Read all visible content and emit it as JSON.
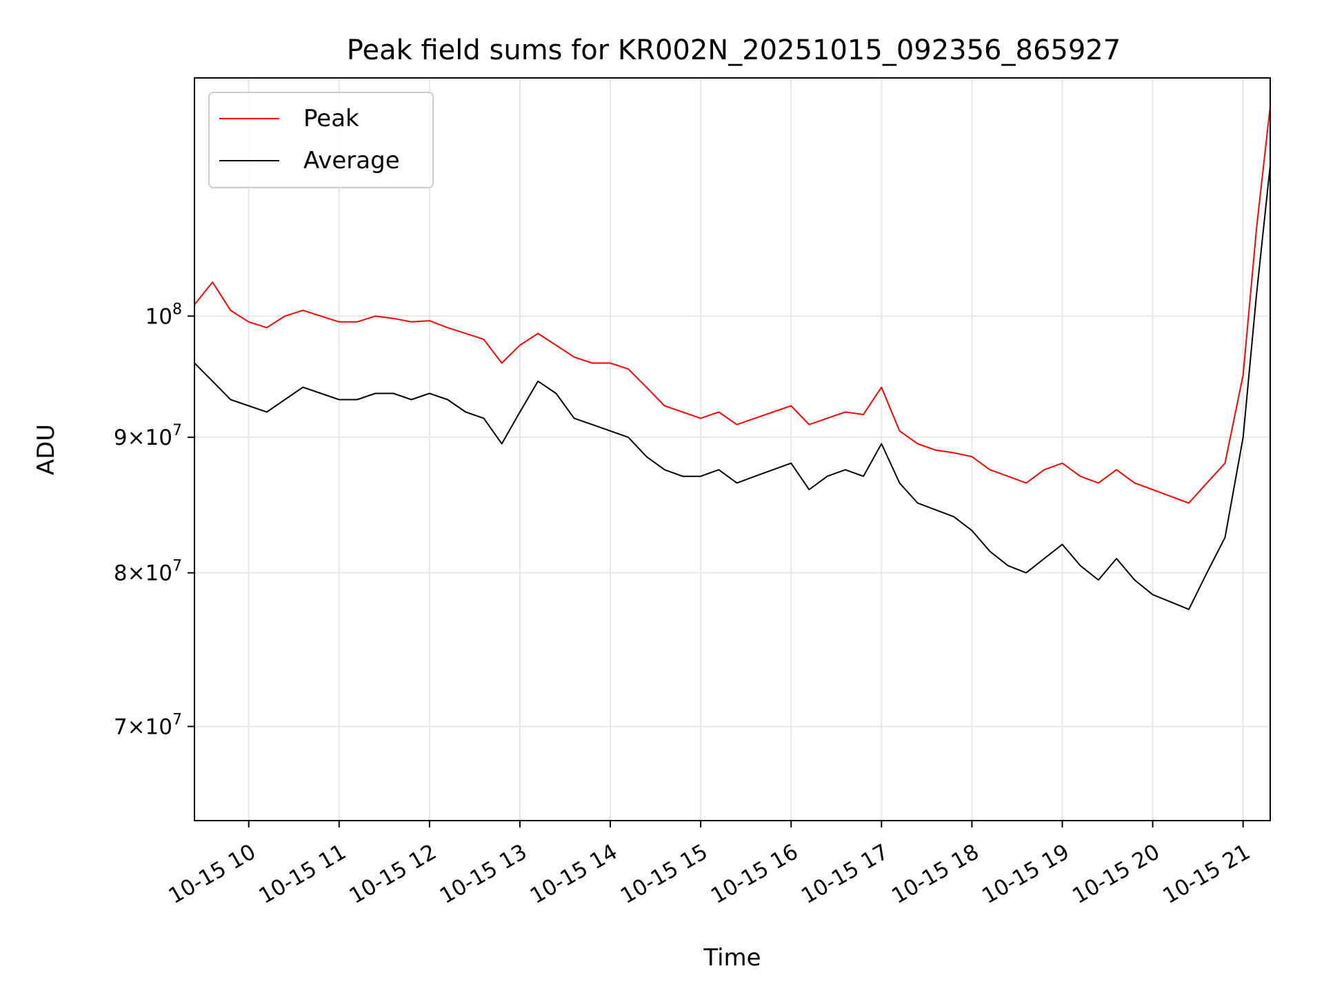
{
  "chart_data": {
    "type": "line",
    "title": "Peak field sums for KR002N_20251015_092356_865927",
    "xlabel": "Time",
    "ylabel": "ADU",
    "yscale": "log",
    "ylim": [
      64500000,
      123000000
    ],
    "xlim": [
      9.4,
      21.3
    ],
    "grid": true,
    "legend_location": "top-left",
    "x_ticks": [
      {
        "value": 10,
        "label": "10-15 10"
      },
      {
        "value": 11,
        "label": "10-15 11"
      },
      {
        "value": 12,
        "label": "10-15 12"
      },
      {
        "value": 13,
        "label": "10-15 13"
      },
      {
        "value": 14,
        "label": "10-15 14"
      },
      {
        "value": 15,
        "label": "10-15 15"
      },
      {
        "value": 16,
        "label": "10-15 16"
      },
      {
        "value": 17,
        "label": "10-15 17"
      },
      {
        "value": 18,
        "label": "10-15 18"
      },
      {
        "value": 19,
        "label": "10-15 19"
      },
      {
        "value": 20,
        "label": "10-15 20"
      },
      {
        "value": 21,
        "label": "10-15 21"
      }
    ],
    "y_ticks": [
      {
        "value": 70000000,
        "base": "7",
        "exp": "7"
      },
      {
        "value": 80000000,
        "base": "8",
        "exp": "7"
      },
      {
        "value": 90000000,
        "base": "9",
        "exp": "7"
      },
      {
        "value": 100000000,
        "base": "",
        "exp": "8"
      }
    ],
    "series": [
      {
        "name": "Peak",
        "color": "#ff0000",
        "x": [
          9.4,
          9.6,
          9.8,
          10.0,
          10.2,
          10.4,
          10.6,
          10.8,
          11.0,
          11.2,
          11.4,
          11.6,
          11.8,
          12.0,
          12.2,
          12.4,
          12.6,
          12.8,
          13.0,
          13.2,
          13.4,
          13.6,
          13.8,
          14.0,
          14.2,
          14.4,
          14.6,
          14.8,
          15.0,
          15.2,
          15.4,
          15.6,
          15.8,
          16.0,
          16.2,
          16.4,
          16.6,
          16.8,
          17.0,
          17.2,
          17.4,
          17.6,
          17.8,
          18.0,
          18.2,
          18.4,
          18.6,
          18.8,
          19.0,
          19.2,
          19.4,
          19.6,
          19.8,
          20.0,
          20.2,
          20.4,
          20.6,
          20.8,
          21.0,
          21.15,
          21.3
        ],
        "values": [
          101000000,
          103000000,
          100500000,
          99500000,
          99000000,
          100000000,
          100500000,
          100000000,
          99500000,
          99500000,
          100000000,
          99800000,
          99500000,
          99600000,
          99000000,
          98500000,
          98000000,
          96000000,
          97500000,
          98500000,
          97500000,
          96500000,
          96000000,
          96000000,
          95500000,
          94000000,
          92500000,
          92000000,
          91500000,
          92000000,
          91000000,
          91500000,
          92000000,
          92500000,
          91000000,
          91500000,
          92000000,
          91800000,
          94000000,
          90500000,
          89500000,
          89000000,
          88800000,
          88500000,
          87500000,
          87000000,
          86500000,
          87500000,
          88000000,
          87000000,
          86500000,
          87500000,
          86500000,
          86000000,
          85500000,
          85000000,
          86500000,
          88000000,
          95000000,
          108000000,
          120000000
        ]
      },
      {
        "name": "Average",
        "color": "#000000",
        "x": [
          9.4,
          9.6,
          9.8,
          10.0,
          10.2,
          10.4,
          10.6,
          10.8,
          11.0,
          11.2,
          11.4,
          11.6,
          11.8,
          12.0,
          12.2,
          12.4,
          12.6,
          12.8,
          13.0,
          13.2,
          13.4,
          13.6,
          13.8,
          14.0,
          14.2,
          14.4,
          14.6,
          14.8,
          15.0,
          15.2,
          15.4,
          15.6,
          15.8,
          16.0,
          16.2,
          16.4,
          16.6,
          16.8,
          17.0,
          17.2,
          17.4,
          17.6,
          17.8,
          18.0,
          18.2,
          18.4,
          18.6,
          18.8,
          19.0,
          19.2,
          19.4,
          19.6,
          19.8,
          20.0,
          20.2,
          20.4,
          20.6,
          20.8,
          21.0,
          21.15,
          21.3
        ],
        "values": [
          96000000,
          94500000,
          93000000,
          92500000,
          92000000,
          93000000,
          94000000,
          93500000,
          93000000,
          93000000,
          93500000,
          93500000,
          93000000,
          93500000,
          93000000,
          92000000,
          91500000,
          89500000,
          92000000,
          94500000,
          93500000,
          91500000,
          91000000,
          90500000,
          90000000,
          88500000,
          87500000,
          87000000,
          87000000,
          87500000,
          86500000,
          87000000,
          87500000,
          88000000,
          86000000,
          87000000,
          87500000,
          87000000,
          89500000,
          86500000,
          85000000,
          84500000,
          84000000,
          83000000,
          81500000,
          80500000,
          80000000,
          81000000,
          82000000,
          80500000,
          79500000,
          81000000,
          79500000,
          78500000,
          78000000,
          77500000,
          80000000,
          82500000,
          90000000,
          102000000,
          114000000
        ]
      }
    ]
  }
}
